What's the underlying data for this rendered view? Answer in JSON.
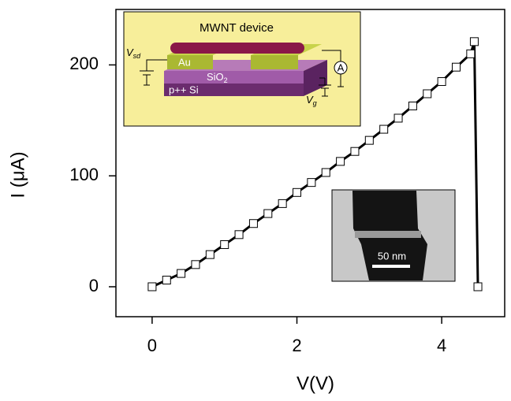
{
  "chart_data": {
    "type": "scatter",
    "xlabel": "V(V)",
    "ylabel": "I (μA)",
    "x": [
      0,
      0.2,
      0.4,
      0.6,
      0.8,
      1.0,
      1.2,
      1.4,
      1.6,
      1.8,
      2.0,
      2.2,
      2.4,
      2.6,
      2.8,
      3.0,
      3.2,
      3.4,
      3.6,
      3.8,
      4.0,
      4.2,
      4.4,
      4.45,
      4.5
    ],
    "series": [
      {
        "color": "#000000",
        "values": [
          0,
          6,
          12,
          20,
          29,
          38,
          47,
          57,
          66,
          75,
          85,
          94,
          103,
          113,
          122,
          132,
          142,
          152,
          163,
          174,
          185,
          198,
          210,
          221,
          0
        ]
      }
    ],
    "xlim": [
      -0.5,
      4.87
    ],
    "ylim": [
      -27,
      250
    ],
    "xticks": [
      0,
      2,
      4
    ],
    "yticks": [
      0,
      100,
      200
    ]
  },
  "insets": {
    "schematic": {
      "title": "MWNT device",
      "vsd": "V",
      "vsd_sub": "sd",
      "au": "Au",
      "sio2": "SiO",
      "sio2_sub": "2",
      "si": "p++ Si",
      "ammeter": "A",
      "vg": "V",
      "vg_sub": "g"
    },
    "micrograph": {
      "scale_bar": "50 nm"
    }
  }
}
